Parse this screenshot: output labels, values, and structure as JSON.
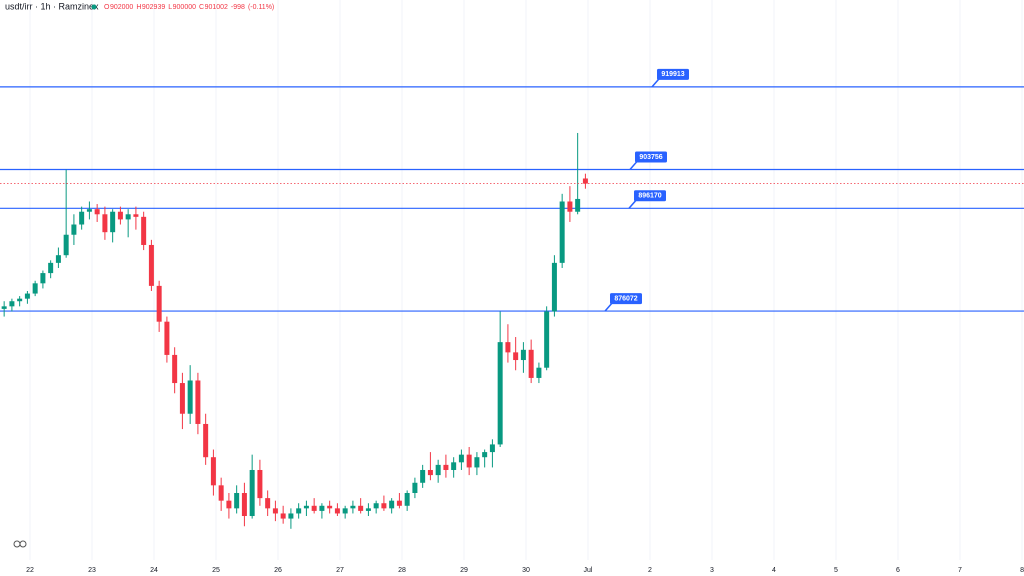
{
  "chart_data": {
    "type": "candlestick",
    "title": "usdt/irr · 1h · Ramzinex",
    "ohlc_header": {
      "open_letter": "O",
      "open": 902000,
      "high_letter": "H",
      "high": 902939,
      "low_letter": "L",
      "low": 900000,
      "close_letter": "C",
      "close": 901002,
      "change": -998,
      "change_percent": "(-0.11%)"
    },
    "up_color": "#089981",
    "down_color": "#f23645",
    "level_color": "#2962ff",
    "xlim": [
      21.516,
      38.032
    ],
    "ylim": [
      827400,
      936900
    ],
    "xticks": [
      22,
      23,
      24,
      25,
      26,
      27,
      28,
      29,
      30,
      {
        "value": 31,
        "label": "Jul"
      },
      {
        "value": 32,
        "label": "2"
      },
      {
        "value": 33,
        "label": "3"
      },
      {
        "value": 34,
        "label": "4"
      },
      {
        "value": 35,
        "label": "5"
      },
      {
        "value": 36,
        "label": "6"
      },
      {
        "value": 37,
        "label": "7"
      },
      {
        "value": 38,
        "label": "8"
      }
    ],
    "levels": [
      919913,
      903756,
      896170,
      876072
    ],
    "x": [
      21.583,
      21.708,
      21.833,
      21.958,
      22.083,
      22.208,
      22.333,
      22.458,
      22.583,
      22.708,
      22.833,
      22.958,
      23.083,
      23.208,
      23.333,
      23.458,
      23.583,
      23.708,
      23.833,
      23.958,
      24.083,
      24.208,
      24.333,
      24.458,
      24.583,
      24.708,
      24.833,
      24.958,
      25.083,
      25.208,
      25.333,
      25.458,
      25.583,
      25.708,
      25.833,
      25.958,
      26.083,
      26.208,
      26.333,
      26.458,
      26.583,
      26.708,
      26.833,
      26.958,
      27.083,
      27.208,
      27.333,
      27.458,
      27.583,
      27.708,
      27.833,
      27.958,
      28.083,
      28.208,
      28.333,
      28.458,
      28.583,
      28.708,
      28.833,
      28.958,
      29.083,
      29.208,
      29.333,
      29.458,
      29.583,
      29.708,
      29.833,
      29.958,
      30.083,
      30.208,
      30.333,
      30.458,
      30.583,
      30.708,
      30.833,
      30.958
    ],
    "open": [
      876500,
      877000,
      878000,
      878500,
      879500,
      881500,
      883500,
      885500,
      887000,
      891000,
      893000,
      895500,
      896000,
      895000,
      891500,
      895500,
      894000,
      895000,
      894500,
      889000,
      881000,
      874000,
      867500,
      862000,
      856000,
      862500,
      854000,
      847500,
      842000,
      839000,
      837500,
      840500,
      836000,
      845000,
      839500,
      837500,
      836500,
      835500,
      836500,
      837500,
      838000,
      837000,
      838000,
      837500,
      836500,
      837500,
      838000,
      837000,
      837500,
      838500,
      837500,
      839000,
      838000,
      840500,
      842500,
      845000,
      844000,
      846000,
      845000,
      846500,
      848000,
      845500,
      847500,
      848500,
      850000,
      870000,
      868000,
      866500,
      868500,
      863000,
      865000,
      876000,
      885500,
      897500,
      895500,
      902000
    ],
    "high": [
      878000,
      878500,
      879000,
      880000,
      882000,
      884000,
      886000,
      888500,
      903756,
      895000,
      896500,
      897500,
      897000,
      896500,
      896000,
      896500,
      896000,
      896500,
      895500,
      890000,
      882000,
      875000,
      869000,
      864000,
      865500,
      864000,
      856000,
      849000,
      843500,
      840500,
      842000,
      842500,
      848000,
      847000,
      841000,
      839000,
      838000,
      837500,
      838500,
      839000,
      839500,
      838500,
      839000,
      838500,
      838000,
      839000,
      839500,
      838500,
      839000,
      840000,
      839500,
      840500,
      841000,
      843500,
      846000,
      848500,
      847000,
      848000,
      847500,
      849000,
      849500,
      848500,
      849000,
      851000,
      876000,
      873500,
      871000,
      870000,
      870500,
      866000,
      877000,
      887000,
      899000,
      900500,
      910900,
      902939
    ],
    "low": [
      875000,
      876000,
      877000,
      877500,
      879000,
      880500,
      882500,
      884500,
      886500,
      889000,
      892000,
      894000,
      893500,
      890000,
      889500,
      893000,
      890500,
      892000,
      888000,
      880000,
      872000,
      866000,
      860000,
      853000,
      854000,
      852000,
      846000,
      840000,
      837000,
      835500,
      836500,
      834000,
      835500,
      838000,
      836000,
      835000,
      834500,
      833500,
      835500,
      836000,
      836500,
      835500,
      836500,
      836000,
      835500,
      836500,
      836500,
      836000,
      836500,
      837000,
      836500,
      837500,
      837000,
      839500,
      841500,
      843000,
      842500,
      843500,
      843500,
      845000,
      844000,
      844000,
      845500,
      845500,
      849500,
      866000,
      864500,
      864000,
      862000,
      862000,
      864500,
      875000,
      884500,
      893500,
      895000,
      900000
    ],
    "close": [
      877000,
      878000,
      878500,
      879500,
      881500,
      883500,
      885500,
      887000,
      891000,
      893000,
      895500,
      896000,
      895000,
      891500,
      895500,
      894000,
      895000,
      894500,
      889000,
      881000,
      874000,
      867500,
      862000,
      856000,
      862500,
      854000,
      847500,
      842000,
      839000,
      837500,
      840500,
      836000,
      845000,
      839500,
      837500,
      836500,
      835500,
      836500,
      837500,
      838000,
      837000,
      838000,
      837500,
      836500,
      837500,
      838000,
      837000,
      837500,
      838500,
      837500,
      839000,
      838000,
      840500,
      842500,
      845000,
      844000,
      846000,
      845000,
      846500,
      848000,
      845500,
      847500,
      848500,
      850000,
      870000,
      868000,
      866500,
      868500,
      863000,
      865000,
      876000,
      885500,
      897500,
      895500,
      898000,
      901002
    ]
  }
}
